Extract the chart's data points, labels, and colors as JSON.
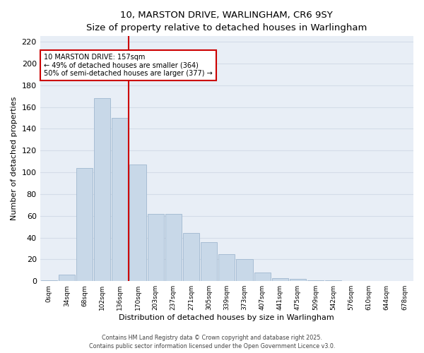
{
  "title_line1": "10, MARSTON DRIVE, WARLINGHAM, CR6 9SY",
  "title_line2": "Size of property relative to detached houses in Warlingham",
  "xlabel": "Distribution of detached houses by size in Warlingham",
  "ylabel": "Number of detached properties",
  "bar_labels": [
    "0sqm",
    "34sqm",
    "68sqm",
    "102sqm",
    "136sqm",
    "170sqm",
    "203sqm",
    "237sqm",
    "271sqm",
    "305sqm",
    "339sqm",
    "373sqm",
    "407sqm",
    "441sqm",
    "475sqm",
    "509sqm",
    "542sqm",
    "576sqm",
    "610sqm",
    "644sqm",
    "678sqm"
  ],
  "bar_heights": [
    1,
    6,
    104,
    168,
    150,
    107,
    62,
    62,
    44,
    36,
    25,
    20,
    8,
    3,
    2,
    1,
    1,
    0,
    0,
    0,
    0
  ],
  "bar_color": "#c8d8e8",
  "bar_edge_color": "#a0b8d0",
  "grid_color": "#d4dce8",
  "background_color": "#e8eef6",
  "vline_color": "#cc0000",
  "annotation_title": "10 MARSTON DRIVE: 157sqm",
  "annotation_line2": "← 49% of detached houses are smaller (364)",
  "annotation_line3": "50% of semi-detached houses are larger (377) →",
  "annotation_box_color": "#cc0000",
  "ylim": [
    0,
    225
  ],
  "yticks": [
    0,
    20,
    40,
    60,
    80,
    100,
    120,
    140,
    160,
    180,
    200,
    220
  ],
  "footer_line1": "Contains HM Land Registry data © Crown copyright and database right 2025.",
  "footer_line2": "Contains public sector information licensed under the Open Government Licence v3.0.",
  "fig_width": 6.0,
  "fig_height": 5.0
}
